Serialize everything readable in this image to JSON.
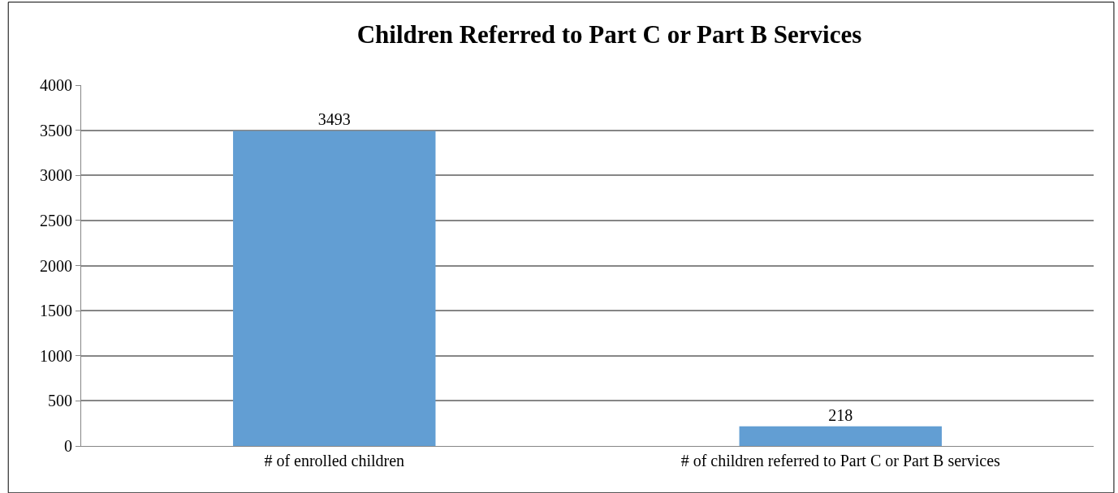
{
  "chart_data": {
    "type": "bar",
    "title": "Children Referred to Part C or Part B Services",
    "categories": [
      "# of enrolled children",
      "# of children referred to Part C or Part B services"
    ],
    "values": [
      3493,
      218
    ],
    "color": "#629ed3",
    "ylim": [
      0,
      4000
    ],
    "yticks": [
      0,
      500,
      1000,
      1500,
      2000,
      2500,
      3000,
      3500,
      4000
    ],
    "grid": "y",
    "data_labels": true
  }
}
